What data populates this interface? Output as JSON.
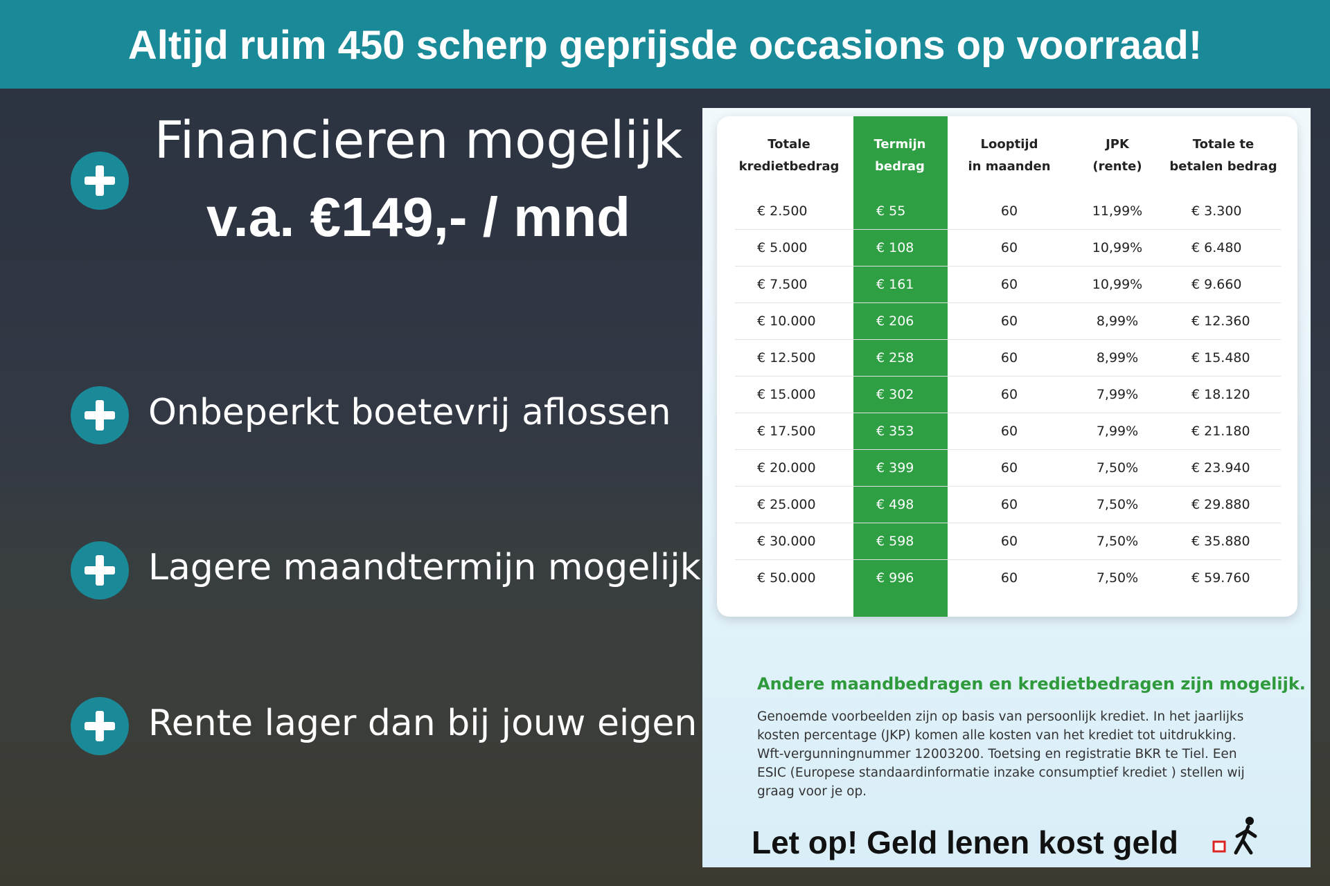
{
  "header": {
    "title": "Altijd ruim 450 scherp geprijsde occasions op voorraad!"
  },
  "hero": {
    "line1": "Financieren mogelijk",
    "line2": "v.a. €149,- / mnd"
  },
  "features": [
    "Onbeperkt boetevrij aflossen",
    "Lagere maandtermijn mogelijk",
    "Rente lager dan bij jouw eigen bank"
  ],
  "table": {
    "headers": [
      [
        "Totale",
        "kredietbedrag"
      ],
      [
        "Termijn",
        "bedrag"
      ],
      [
        "Looptijd",
        "in maanden"
      ],
      [
        "JPK",
        "(rente)"
      ],
      [
        "Totale te",
        "betalen bedrag"
      ]
    ],
    "rows": [
      [
        "€ 2.500",
        "€ 55",
        "60",
        "11,99%",
        "€ 3.300"
      ],
      [
        "€ 5.000",
        "€ 108",
        "60",
        "10,99%",
        "€ 6.480"
      ],
      [
        "€ 7.500",
        "€ 161",
        "60",
        "10,99%",
        "€ 9.660"
      ],
      [
        "€ 10.000",
        "€ 206",
        "60",
        "8,99%",
        "€ 12.360"
      ],
      [
        "€ 12.500",
        "€ 258",
        "60",
        "8,99%",
        "€ 15.480"
      ],
      [
        "€ 15.000",
        "€ 302",
        "60",
        "7,99%",
        "€ 18.120"
      ],
      [
        "€ 17.500",
        "€ 353",
        "60",
        "7,99%",
        "€ 21.180"
      ],
      [
        "€ 20.000",
        "€ 399",
        "60",
        "7,50%",
        "€ 23.940"
      ],
      [
        "€ 25.000",
        "€ 498",
        "60",
        "7,50%",
        "€ 29.880"
      ],
      [
        "€ 30.000",
        "€ 598",
        "60",
        "7,50%",
        "€ 35.880"
      ],
      [
        "€ 50.000",
        "€ 996",
        "60",
        "7,50%",
        "€ 59.760"
      ]
    ]
  },
  "notes": {
    "highlight": "Andere maandbedragen en kredietbedragen zijn mogelijk.",
    "body": "Genoemde voorbeelden zijn op basis van persoonlijk krediet. In het jaarlijks kosten percentage (JKP) komen alle kosten van het krediet tot uitdrukking. Wft-vergunningnummer 12003200. Toetsing en registratie BKR te Tiel. Een ESIC (Europese standaardinformatie inzake consumptief krediet ) stellen wij graag voor je op.",
    "warning": "Let op! Geld lenen kost geld"
  }
}
